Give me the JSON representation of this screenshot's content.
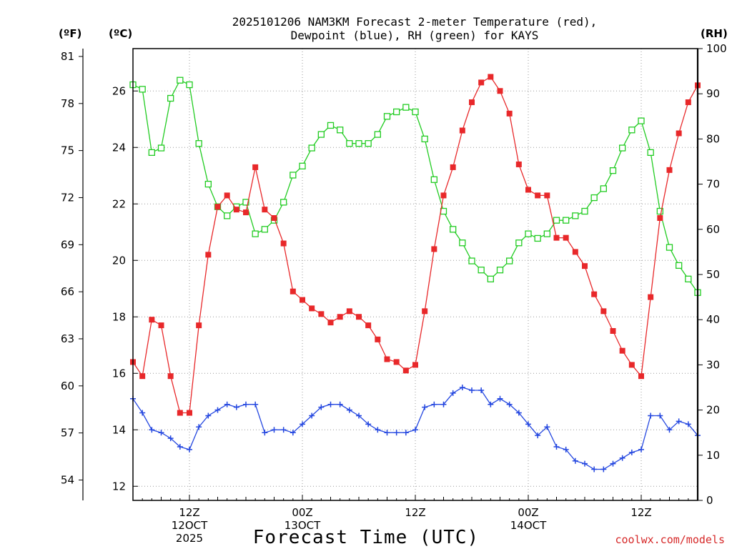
{
  "chart_data": {
    "type": "line",
    "title_line1": "2025101206 NAM3KM Forecast 2-meter Temperature (red),",
    "title_line2": "Dewpoint (blue), RH (green) for KAYS",
    "xlabel": "Forecast Time (UTC)",
    "credit": "coolwx.com/models",
    "unit_f": "(ºF)",
    "unit_c": "(ºC)",
    "unit_rh": "(RH)",
    "x_unit": "forecast hour",
    "x_range": [
      0,
      60
    ],
    "celsius_range": [
      11.5,
      27.5
    ],
    "rh_range": [
      0,
      100
    ],
    "fahrenheit_ticks": [
      "81",
      "78",
      "75",
      "72",
      "69",
      "66",
      "63",
      "60",
      "57",
      "54"
    ],
    "celsius_ticks": [
      "26",
      "24",
      "22",
      "20",
      "18",
      "16",
      "14",
      "12"
    ],
    "rh_ticks": [
      "100",
      "90",
      "80",
      "70",
      "60",
      "50",
      "40",
      "30",
      "20",
      "10",
      "0"
    ],
    "x_ticks": [
      {
        "hour": 6,
        "label": "12Z",
        "line2": "12OCT",
        "line3": "2025"
      },
      {
        "hour": 18,
        "label": "00Z",
        "line2": "13OCT",
        "line3": ""
      },
      {
        "hour": 30,
        "label": "12Z",
        "line2": "",
        "line3": ""
      },
      {
        "hour": 42,
        "label": "00Z",
        "line2": "14OCT",
        "line3": ""
      },
      {
        "hour": 54,
        "label": "12Z",
        "line2": "",
        "line3": ""
      }
    ],
    "series": [
      {
        "name": "2-meter Temperature",
        "unit": "C",
        "color": "#e8282a",
        "marker": "filled-square",
        "x": [
          0,
          1,
          2,
          3,
          4,
          5,
          6,
          7,
          8,
          9,
          10,
          11,
          12,
          13,
          14,
          15,
          16,
          17,
          18,
          19,
          20,
          21,
          22,
          23,
          24,
          25,
          26,
          27,
          28,
          29,
          30,
          31,
          32,
          33,
          34,
          35,
          36,
          37,
          38,
          39,
          40,
          41,
          42,
          43,
          44,
          45,
          46,
          47,
          48,
          49,
          50,
          51,
          52,
          53,
          54,
          55,
          56,
          57,
          58,
          59,
          60
        ],
        "values": [
          16.4,
          15.9,
          17.9,
          17.7,
          15.9,
          14.6,
          14.6,
          17.7,
          20.2,
          21.9,
          22.3,
          21.8,
          21.7,
          23.3,
          21.8,
          21.5,
          20.6,
          18.9,
          18.6,
          18.3,
          18.1,
          17.8,
          18.0,
          18.2,
          18.0,
          17.7,
          17.2,
          16.5,
          16.4,
          16.1,
          16.3,
          18.2,
          20.4,
          22.3,
          23.3,
          24.6,
          25.6,
          26.3,
          26.5,
          26.0,
          25.2,
          23.4,
          22.5,
          22.3,
          22.3,
          20.8,
          20.8,
          20.3,
          19.8,
          18.8,
          18.2,
          17.5,
          16.8,
          16.3,
          15.9,
          18.7,
          21.5,
          23.2,
          24.5,
          25.6,
          26.2
        ]
      },
      {
        "name": "Dewpoint",
        "unit": "C",
        "color": "#2447e0",
        "marker": "plus",
        "x": [
          0,
          1,
          2,
          3,
          4,
          5,
          6,
          7,
          8,
          9,
          10,
          11,
          12,
          13,
          14,
          15,
          16,
          17,
          18,
          19,
          20,
          21,
          22,
          23,
          24,
          25,
          26,
          27,
          28,
          29,
          30,
          31,
          32,
          33,
          34,
          35,
          36,
          37,
          38,
          39,
          40,
          41,
          42,
          43,
          44,
          45,
          46,
          47,
          48,
          49,
          50,
          51,
          52,
          53,
          54,
          55,
          56,
          57,
          58,
          59,
          60
        ],
        "values": [
          15.1,
          14.6,
          14.0,
          13.9,
          13.7,
          13.4,
          13.3,
          14.1,
          14.5,
          14.7,
          14.9,
          14.8,
          14.9,
          14.9,
          13.9,
          14.0,
          14.0,
          13.9,
          14.2,
          14.5,
          14.8,
          14.9,
          14.9,
          14.7,
          14.5,
          14.2,
          14.0,
          13.9,
          13.9,
          13.9,
          14.0,
          14.8,
          14.9,
          14.9,
          15.3,
          15.5,
          15.4,
          15.4,
          14.9,
          15.1,
          14.9,
          14.6,
          14.2,
          13.8,
          14.1,
          13.4,
          13.3,
          12.9,
          12.8,
          12.6,
          12.6,
          12.8,
          13.0,
          13.2,
          13.3,
          14.5,
          14.5,
          14.0,
          14.3,
          14.2,
          13.8
        ]
      },
      {
        "name": "RH",
        "unit": "%",
        "color": "#22cc22",
        "marker": "open-square",
        "x": [
          0,
          1,
          2,
          3,
          4,
          5,
          6,
          7,
          8,
          9,
          10,
          11,
          12,
          13,
          14,
          15,
          16,
          17,
          18,
          19,
          20,
          21,
          22,
          23,
          24,
          25,
          26,
          27,
          28,
          29,
          30,
          31,
          32,
          33,
          34,
          35,
          36,
          37,
          38,
          39,
          40,
          41,
          42,
          43,
          44,
          45,
          46,
          47,
          48,
          49,
          50,
          51,
          52,
          53,
          54,
          55,
          56,
          57,
          58,
          59,
          60
        ],
        "values": [
          92,
          91,
          77,
          78,
          89,
          93,
          92,
          79,
          70,
          65,
          63,
          65,
          66,
          59,
          60,
          62,
          66,
          72,
          74,
          78,
          81,
          83,
          82,
          79,
          79,
          79,
          81,
          85,
          86,
          87,
          86,
          80,
          71,
          64,
          60,
          57,
          53,
          51,
          49,
          51,
          53,
          57,
          59,
          58,
          59,
          62,
          62,
          63,
          64,
          67,
          69,
          73,
          78,
          82,
          84,
          77,
          64,
          56,
          52,
          49,
          46
        ]
      }
    ]
  }
}
